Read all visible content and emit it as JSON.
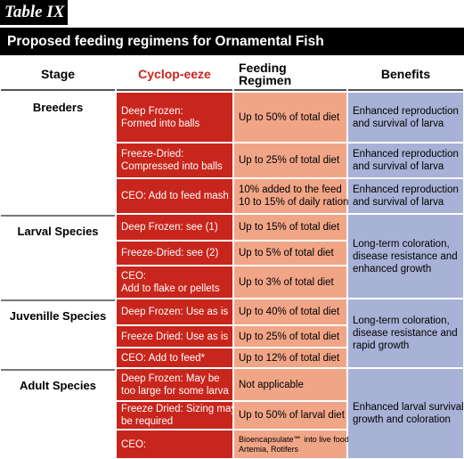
{
  "label": "Table IX",
  "title": "Proposed feeding regimens for Ornamental Fish",
  "columns": [
    "Stage",
    "Cyclop-eeze",
    "Feeding Regimen",
    "Benefits"
  ],
  "groups": [
    {
      "stage": "Breeders",
      "rows": [
        {
          "cyclop": [
            "Deep Frozen:",
            "Formed into balls"
          ],
          "regimen": [
            "Up to 50% of total diet"
          ]
        },
        {
          "cyclop": [
            "Freeze-Dried:",
            "Compressed into balls"
          ],
          "regimen": [
            "Up to 25% of total diet"
          ]
        },
        {
          "cyclop": [
            "CEO: Add to feed mash"
          ],
          "regimen": [
            "10% added to the feed",
            "10 to 15% of daily ration"
          ]
        }
      ],
      "benefits": [
        [
          "Enhanced reproduction",
          "and survival of larva"
        ],
        [
          "Enhanced reproduction",
          "and survival of larva"
        ],
        [
          "Enhanced reproduction",
          "and survival of larva"
        ]
      ]
    },
    {
      "stage": "Larval Species",
      "rows": [
        {
          "cyclop": [
            "Deep Frozen: see (1)"
          ],
          "regimen": [
            "Up to 15% of total diet"
          ]
        },
        {
          "cyclop": [
            "Freeze-Dried: see (2)"
          ],
          "regimen": [
            "Up to 5% of total diet"
          ]
        },
        {
          "cyclop": [
            "CEO:",
            "Add to flake or pellets"
          ],
          "regimen": [
            "Up to 3% of total diet"
          ]
        }
      ],
      "benefits": [
        [
          "Long-term coloration,",
          "disease resistance and",
          "enhanced growth"
        ]
      ]
    },
    {
      "stage": "Juvenille Species",
      "rows": [
        {
          "cyclop": [
            "Deep Frozen: Use as is"
          ],
          "regimen": [
            "Up to 40% of total diet"
          ]
        },
        {
          "cyclop": [
            "Freeze Dried: Use as is"
          ],
          "regimen": [
            "Up to 25% of total diet"
          ]
        },
        {
          "cyclop": [
            "CEO: Add to feed*"
          ],
          "regimen": [
            "Up to 12% of total diet"
          ]
        }
      ],
      "benefits": [
        [
          "Long-term coloration,",
          "disease resistance and",
          "rapid growth"
        ]
      ]
    },
    {
      "stage": "Adult Species",
      "rows": [
        {
          "cyclop": [
            "Deep Frozen: May be",
            "too large for some larva"
          ],
          "regimen": [
            "Not applicable"
          ]
        },
        {
          "cyclop": [
            "Freeze Dried: Sizing may",
            "be required"
          ],
          "regimen": [
            "Up to 50% of larval diet"
          ]
        },
        {
          "cyclop": [
            "CEO:"
          ],
          "regimen": [
            "Bioencapsulate℠ into live food;",
            "Artemia, Rotifers"
          ]
        }
      ],
      "benefits": [
        [
          "Enhanced larval survival,",
          "growth and coloration"
        ]
      ]
    }
  ]
}
